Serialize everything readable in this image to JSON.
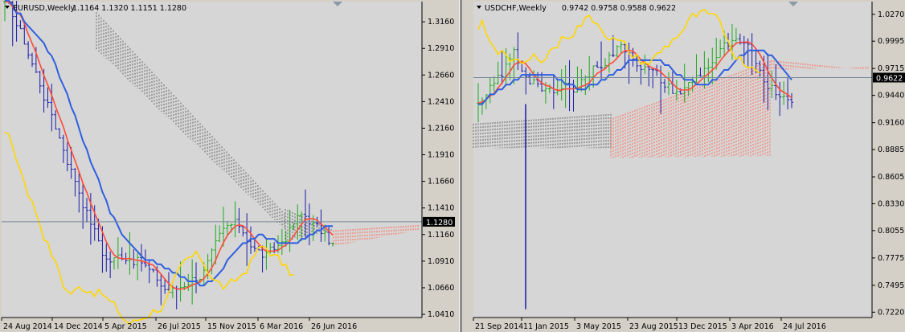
{
  "colors": {
    "background": "#d6d6d6",
    "bull_candle": "#1faa1f",
    "bear_candle": "#1a1aa8",
    "tenkan": "#ff4a3a",
    "kijun": "#2f5fe0",
    "chikou": "#ffd700",
    "cloud_up": "#ff6a55",
    "cloud_down": "#666666",
    "price_line": "#7a8a99",
    "price_tag_bg": "#000000"
  },
  "charts": [
    {
      "symbol_line": "EURUSD,Weekly",
      "ohlc": "1.1164 1.1320 1.1151 1.1280",
      "current_price_label": "1.1280",
      "chart_data": {
        "type": "candlestick",
        "symbol": "EURUSD",
        "timeframe": "Weekly",
        "ylim": [
          1.038,
          1.335
        ],
        "y_ticks": [
          "1.3160",
          "1.2910",
          "1.2660",
          "1.2410",
          "1.2160",
          "1.1910",
          "1.1660",
          "1.1410",
          "1.1160",
          "1.0910",
          "1.0660",
          "1.0410"
        ],
        "x_ticks": [
          "24 Aug 2014",
          "14 Dec 2014",
          "5 Apr 2015",
          "26 Jul 2015",
          "15 Nov 2015",
          "6 Mar 2016",
          "26 Jun 2016"
        ],
        "current_price": 1.128,
        "last_bar": {
          "open": 1.1164,
          "high": 1.132,
          "low": 1.1151,
          "close": 1.128
        },
        "indicators": [
          "Ichimoku Tenkan-sen",
          "Ichimoku Kijun-sen",
          "Ichimoku Chikou Span",
          "Ichimoku Kumo"
        ]
      }
    },
    {
      "symbol_line": "USDCHF,Weekly",
      "ohlc": "0.9742 0.9758 0.9588 0.9622",
      "current_price_label": "0.9622",
      "chart_data": {
        "type": "candlestick",
        "symbol": "USDCHF",
        "timeframe": "Weekly",
        "ylim": [
          0.7165,
          1.04
        ],
        "y_ticks": [
          "1.0270",
          "0.9995",
          "0.9715",
          "0.9440",
          "0.9160",
          "0.8885",
          "0.8605",
          "0.8330",
          "0.8055",
          "0.7775",
          "0.7495",
          "0.7220"
        ],
        "x_ticks": [
          "21 Sep 2014",
          "11 Jan 2015",
          "3 May 2015",
          "23 Aug 2015",
          "13 Dec 2015",
          "3 Apr 2016",
          "24 Jul 2016"
        ],
        "current_price": 0.9622,
        "last_bar": {
          "open": 0.9742,
          "high": 0.9758,
          "low": 0.9588,
          "close": 0.9622
        },
        "indicators": [
          "Ichimoku Tenkan-sen",
          "Ichimoku Kijun-sen",
          "Ichimoku Chikou Span",
          "Ichimoku Kumo"
        ]
      }
    }
  ]
}
